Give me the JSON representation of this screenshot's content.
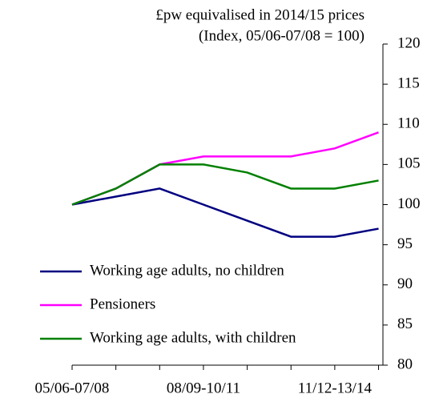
{
  "chart_data": {
    "type": "line",
    "title_lines": [
      "£pw equivalised in 2014/15 prices",
      "(Index, 05/06-07/08 = 100)"
    ],
    "categories": [
      "05/06-07/08",
      null,
      null,
      "08/09-10/11",
      null,
      null,
      "11/12-13/14",
      null
    ],
    "series": [
      {
        "name": "Working age adults, no children",
        "color": "#000080",
        "values": [
          100,
          101,
          102,
          100,
          98,
          96,
          96,
          97
        ]
      },
      {
        "name": "Pensioners",
        "color": "#ff00ff",
        "values": [
          100,
          102,
          105,
          106,
          106,
          106,
          107,
          109
        ]
      },
      {
        "name": "Working age adults, with children",
        "color": "#008000",
        "values": [
          100,
          102,
          105,
          105,
          104,
          102,
          102,
          103
        ]
      }
    ],
    "ylim": [
      80,
      120
    ],
    "yticks": [
      80,
      85,
      90,
      95,
      100,
      105,
      110,
      115,
      120
    ],
    "y_axis_side": "right",
    "legend": "lower-left"
  }
}
